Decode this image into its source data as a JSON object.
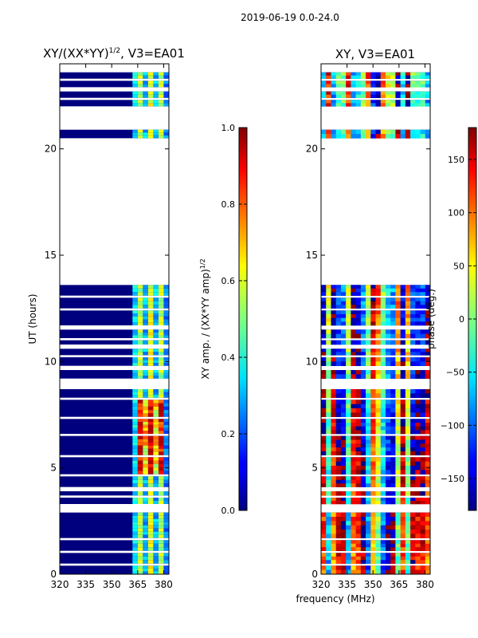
{
  "figure_title": "2019-06-19 0.0-24.0",
  "colors": {
    "background": "#ffffff",
    "axis": "#000000",
    "band": "#00007f"
  },
  "chart_data": [
    {
      "type": "heatmap",
      "name": "amplitude-ratio",
      "title": "XY/(XX*YY)",
      "title_superscript": "1/2",
      "title_suffix": ", V3=EA01",
      "xlabel": "",
      "ylabel": "UT (hours)",
      "xlim": [
        320,
        383
      ],
      "ylim": [
        0,
        24
      ],
      "xticks": [
        320,
        335,
        350,
        365,
        380
      ],
      "yticks": [
        0,
        5,
        10,
        15,
        20
      ],
      "colorbar": {
        "label": "XY amp. / (XX*YY amp)",
        "label_superscript": "1/2",
        "colormap": "jet",
        "range": [
          0.0,
          1.0
        ],
        "ticks": [
          "0.0",
          "0.2",
          "0.4",
          "0.6",
          "0.8",
          "1.0"
        ],
        "tick_values": [
          0.0,
          0.2,
          0.4,
          0.6,
          0.8,
          1.0
        ]
      },
      "data_bands_hours": [
        [
          0.0,
          0.4
        ],
        [
          0.5,
          1.0
        ],
        [
          1.1,
          1.6
        ],
        [
          1.7,
          2.9
        ],
        [
          3.3,
          3.6
        ],
        [
          3.7,
          3.9
        ],
        [
          4.1,
          4.6
        ],
        [
          4.7,
          5.5
        ],
        [
          5.6,
          6.5
        ],
        [
          6.6,
          7.3
        ],
        [
          7.4,
          8.2
        ],
        [
          8.3,
          8.7
        ],
        [
          9.2,
          9.6
        ],
        [
          9.8,
          10.2
        ],
        [
          10.3,
          10.6
        ],
        [
          10.8,
          11.0
        ],
        [
          11.1,
          11.5
        ],
        [
          11.7,
          12.4
        ],
        [
          12.5,
          13.0
        ],
        [
          13.1,
          13.6
        ],
        [
          20.5,
          20.9
        ],
        [
          22.0,
          22.3
        ],
        [
          22.4,
          22.7
        ],
        [
          22.9,
          23.2
        ],
        [
          23.3,
          23.6
        ]
      ],
      "typical_value_by_frequency_mhz": {
        "320-362": 0.05,
        "362-365": 0.35,
        "365-368": 0.55,
        "368-371": 0.3,
        "371-374": 0.6,
        "374-377": 0.3,
        "377-380": 0.55,
        "380-383": 0.25
      },
      "peak_value_hours_5_to_8": 0.9
    },
    {
      "type": "heatmap",
      "name": "phase",
      "title": "XY, V3=EA01",
      "xlabel": "frequency (MHz)",
      "ylabel": "",
      "xlim": [
        320,
        383
      ],
      "ylim": [
        0,
        24
      ],
      "xticks": [
        320,
        335,
        350,
        365,
        380
      ],
      "yticks": [
        0,
        5,
        10,
        15,
        20
      ],
      "colorbar": {
        "label": "phase (deg.)",
        "colormap": "jet",
        "range": [
          -180,
          180
        ],
        "ticks": [
          "150",
          "100",
          "50",
          "0",
          "−50",
          "−100",
          "−150"
        ],
        "tick_values": [
          150,
          100,
          50,
          0,
          -50,
          -100,
          -150
        ]
      },
      "data_bands_hours": [
        [
          0.0,
          0.4
        ],
        [
          0.5,
          1.0
        ],
        [
          1.1,
          1.6
        ],
        [
          1.7,
          2.9
        ],
        [
          3.3,
          3.6
        ],
        [
          3.7,
          3.9
        ],
        [
          4.1,
          4.6
        ],
        [
          4.7,
          5.5
        ],
        [
          5.6,
          6.5
        ],
        [
          6.6,
          7.3
        ],
        [
          7.4,
          8.2
        ],
        [
          8.3,
          8.7
        ],
        [
          9.2,
          9.6
        ],
        [
          9.8,
          10.2
        ],
        [
          10.3,
          10.6
        ],
        [
          10.8,
          11.0
        ],
        [
          11.1,
          11.5
        ],
        [
          11.7,
          12.4
        ],
        [
          12.5,
          13.0
        ],
        [
          13.1,
          13.6
        ],
        [
          20.5,
          20.9
        ],
        [
          22.0,
          22.3
        ],
        [
          22.4,
          22.7
        ],
        [
          22.9,
          23.2
        ],
        [
          23.3,
          23.6
        ]
      ],
      "phase_pattern": "vertical stripes across frequency, values spanning -180 to 180 deg"
    }
  ]
}
